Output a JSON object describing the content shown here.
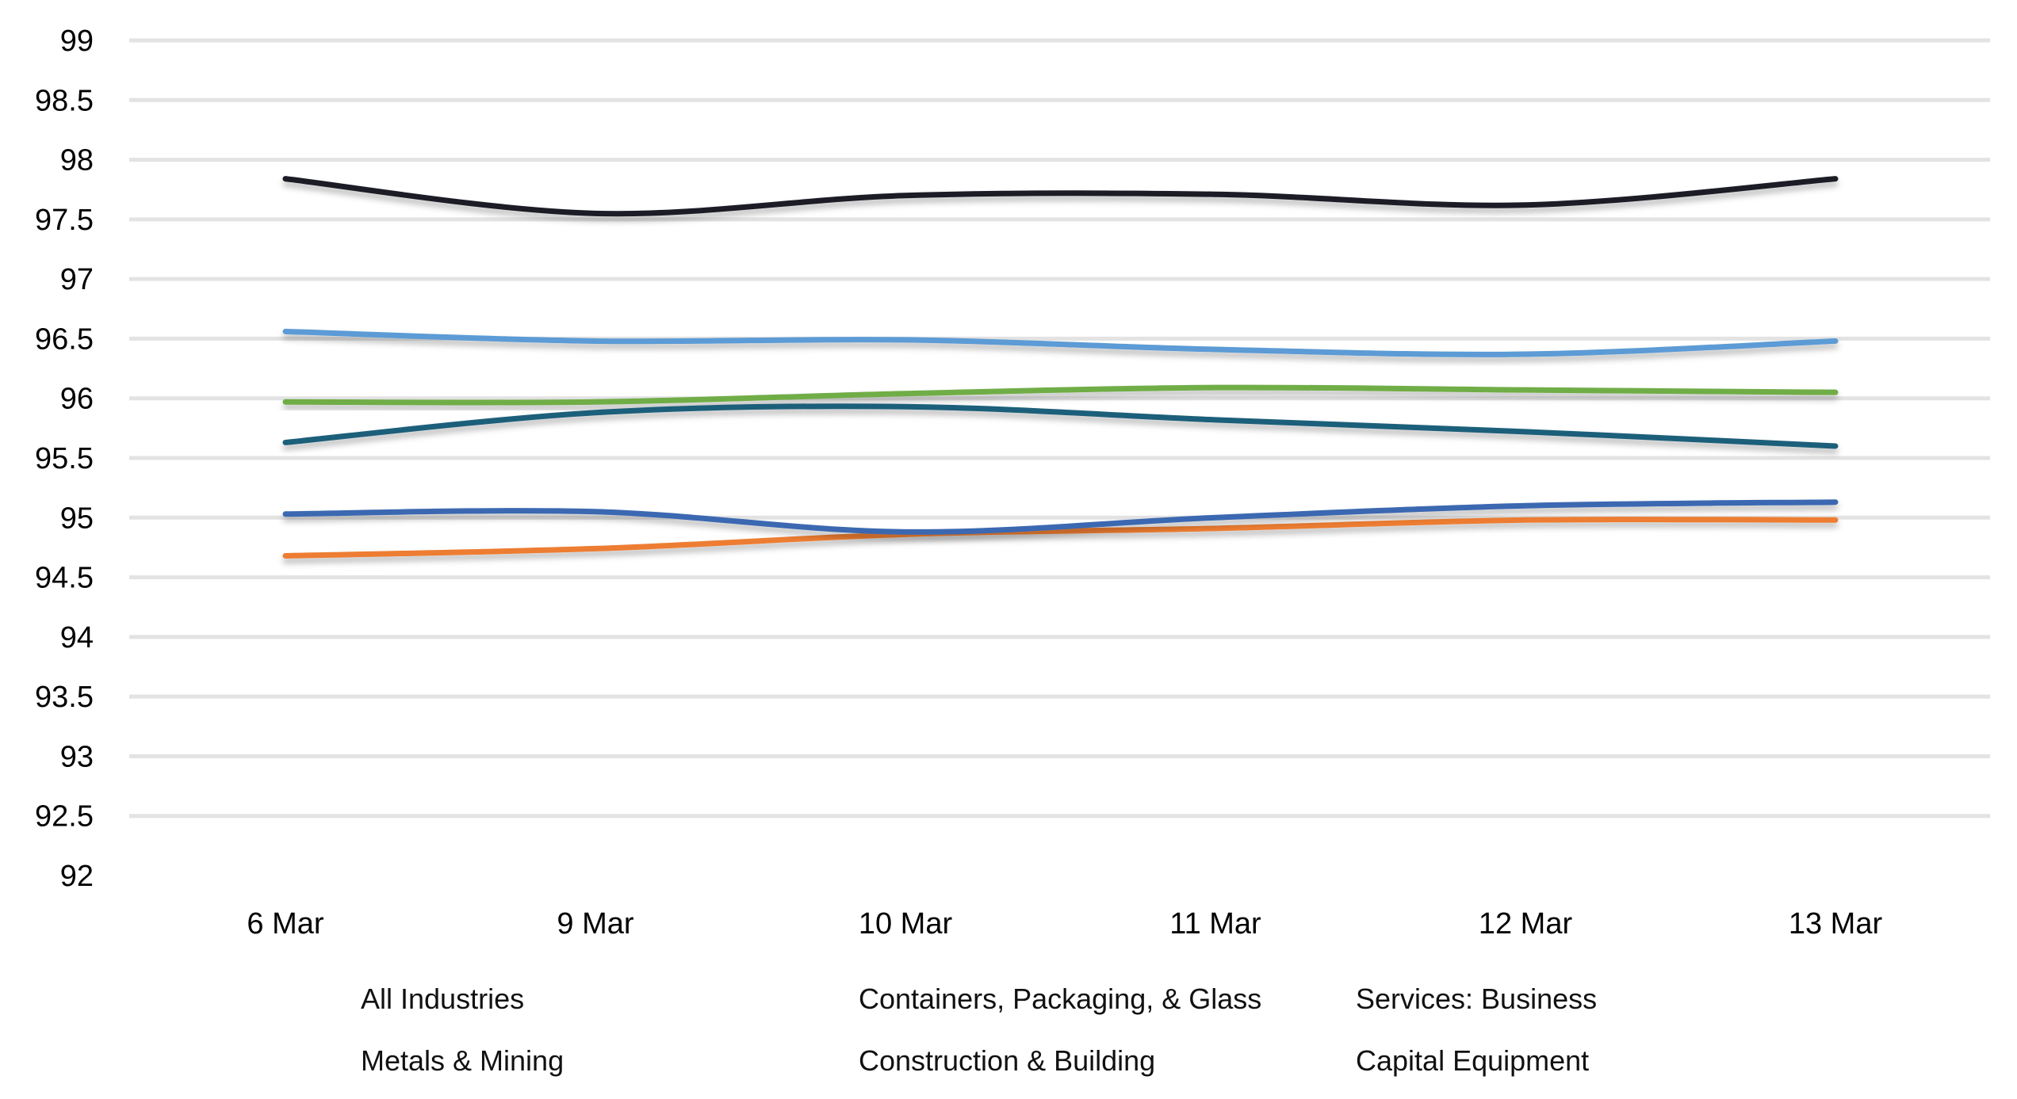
{
  "chart_data": {
    "type": "line",
    "title": "",
    "xlabel": "",
    "ylabel": "",
    "categories": [
      "6 Mar",
      "9 Mar",
      "10 Mar",
      "11 Mar",
      "12 Mar",
      "13 Mar"
    ],
    "ylim": [
      92,
      99
    ],
    "yticks": [
      "92",
      "92.5",
      "93",
      "93.5",
      "94",
      "94.5",
      "95",
      "95.5",
      "96",
      "96.5",
      "97",
      "97.5",
      "98",
      "98.5",
      "99"
    ],
    "grid": true,
    "legend_position": "bottom",
    "series": [
      {
        "name": "All Industries",
        "color": "#70ad47",
        "values": [
          95.97,
          95.97,
          96.04,
          96.09,
          96.07,
          96.05
        ]
      },
      {
        "name": "Containers, Packaging, & Glass",
        "color": "#1f5f7a",
        "values": [
          95.63,
          95.88,
          95.93,
          95.82,
          95.72,
          95.6
        ]
      },
      {
        "name": "Services: Business",
        "color": "#ed7d31",
        "values": [
          94.68,
          94.74,
          94.86,
          94.91,
          94.98,
          94.98
        ]
      },
      {
        "name": "Metals & Mining",
        "color": "#3a67b1",
        "values": [
          95.03,
          95.05,
          94.88,
          95.0,
          95.1,
          95.13
        ]
      },
      {
        "name": "Construction & Building",
        "color": "#5b9bd5",
        "values": [
          96.56,
          96.48,
          96.49,
          96.41,
          96.37,
          96.48
        ]
      },
      {
        "name": "Capital Equipment",
        "color": "#1c1c28",
        "values": [
          97.84,
          97.55,
          97.7,
          97.71,
          97.62,
          97.84
        ]
      }
    ]
  }
}
